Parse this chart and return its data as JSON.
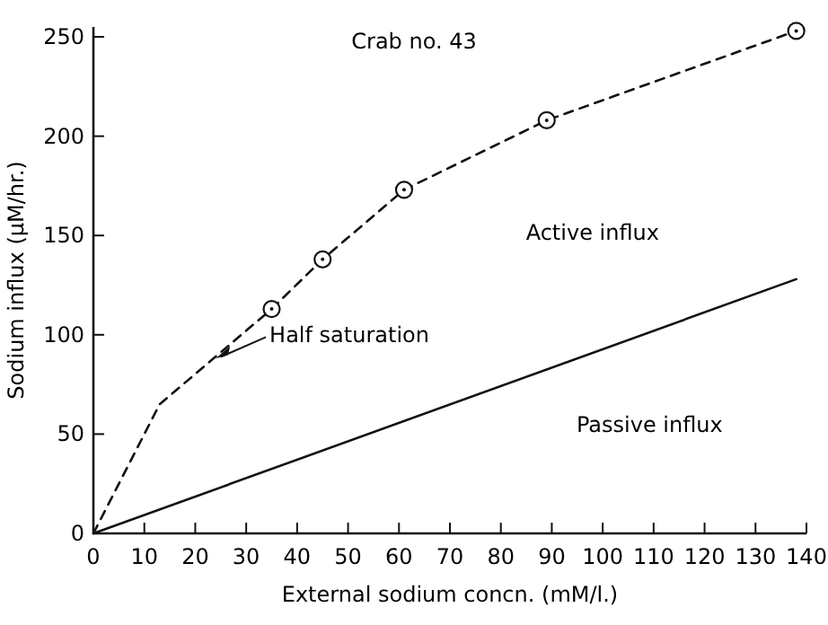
{
  "chart_data": {
    "type": "line",
    "title": "Crab no. 43",
    "xlabel": "External sodium concn. (mM/l.)",
    "ylabel": "Sodium influx (μM/hr.)",
    "xlim": [
      0,
      140
    ],
    "xticks": [
      0,
      10,
      20,
      30,
      40,
      50,
      60,
      70,
      80,
      90,
      100,
      110,
      120,
      130,
      140
    ],
    "ylim": [
      0,
      255
    ],
    "yticks": [
      0,
      50,
      100,
      150,
      200,
      250
    ],
    "grid": false,
    "series": [
      {
        "color": "#111111",
        "x": [
          0,
          13,
          35
        ],
        "values": [
          0,
          65,
          113
        ],
        "line_style": "dashed",
        "marker": "none"
      },
      {
        "color": "#111111",
        "x": [
          35,
          45,
          61,
          89,
          138
        ],
        "values": [
          113,
          138,
          173,
          208,
          253
        ],
        "line_style": "dashed",
        "marker": "circle"
      },
      {
        "color": "#111111",
        "x": [
          0,
          138
        ],
        "values": [
          0,
          128
        ],
        "line_style": "solid",
        "marker": "none"
      }
    ],
    "annotations": [
      {
        "text": "Half saturation",
        "x": 24,
        "y": 88
      },
      "Active influx",
      "Passive influx"
    ]
  }
}
